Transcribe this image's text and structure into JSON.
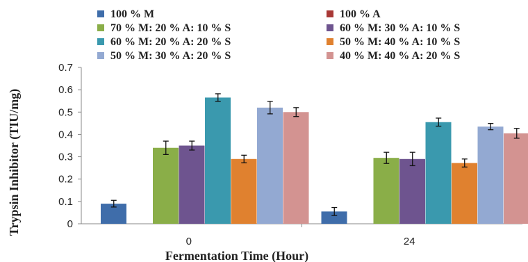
{
  "chart_data": {
    "type": "bar",
    "title": "",
    "xlabel": "Fermentation Time (Hour)",
    "ylabel": "Trypsin Inhibitor (TIU/mg)",
    "ylim": [
      0,
      0.7
    ],
    "yticks": [
      "0",
      "0.1",
      "0.2",
      "0.3",
      "0.4",
      "0.5",
      "0.6",
      "0.7"
    ],
    "categories": [
      "0",
      "24"
    ],
    "grid": false,
    "legend_position": "top",
    "series": [
      {
        "name": "100 % M",
        "color": "#3F6DAA",
        "values": [
          0.09,
          0.055
        ],
        "errors": [
          0.015,
          0.018
        ]
      },
      {
        "name": "100 % A",
        "color": "#A83836",
        "values": [
          0.0,
          0.0
        ],
        "errors": [
          0,
          0
        ]
      },
      {
        "name": "70 % M: 20 % A: 10 % S",
        "color": "#8AAE48",
        "values": [
          0.34,
          0.295
        ],
        "errors": [
          0.03,
          0.025
        ]
      },
      {
        "name": "60 % M: 30 % A: 10 % S",
        "color": "#6E548F",
        "values": [
          0.35,
          0.29
        ],
        "errors": [
          0.02,
          0.03
        ]
      },
      {
        "name": "60 % M: 20 % A: 20 % S",
        "color": "#3A99AE",
        "values": [
          0.565,
          0.455
        ],
        "errors": [
          0.017,
          0.018
        ]
      },
      {
        "name": "50 % M: 40 % A: 10 % S",
        "color": "#E0812F",
        "values": [
          0.29,
          0.272
        ],
        "errors": [
          0.017,
          0.018
        ]
      },
      {
        "name": "50 % M: 30 % A: 20 % S",
        "color": "#93A9D2",
        "values": [
          0.52,
          0.435
        ],
        "errors": [
          0.028,
          0.014
        ]
      },
      {
        "name": "40 % M: 40 % A: 20 % S",
        "color": "#D39391",
        "values": [
          0.5,
          0.405
        ],
        "errors": [
          0.02,
          0.022
        ]
      }
    ]
  }
}
